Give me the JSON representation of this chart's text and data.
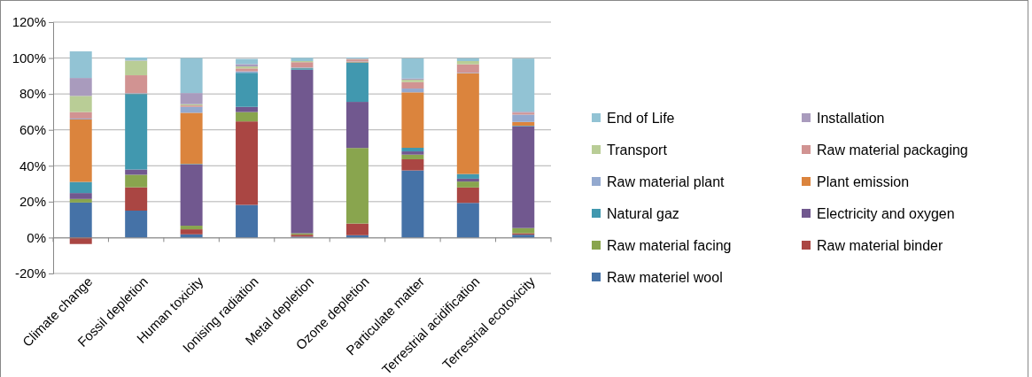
{
  "chart_data": {
    "type": "bar",
    "stacked": true,
    "grid": "y",
    "legend": "right",
    "categories": [
      "Climate change",
      "Fossil depletion",
      "Human toxicity",
      "Ionising radiation",
      "Metal depletion",
      "Ozone depletion",
      "Particulate matter",
      "Terrestrial acidification",
      "Terrestrial ecotoxicity"
    ],
    "ylim": [
      -20,
      120
    ],
    "yticks": [
      {
        "value": -20,
        "label": "-20%"
      },
      {
        "value": 0,
        "label": "0%"
      },
      {
        "value": 20,
        "label": "20%"
      },
      {
        "value": 40,
        "label": "40%"
      },
      {
        "value": 60,
        "label": "60%"
      },
      {
        "value": 80,
        "label": "80%"
      },
      {
        "value": 100,
        "label": "100%"
      },
      {
        "value": 120,
        "label": "120%"
      }
    ],
    "series": [
      {
        "name": "Raw materiel wool",
        "color": "#4572a7",
        "values": [
          19.5,
          15,
          1.8,
          18.2,
          0.5,
          1.3,
          37.4,
          19.3,
          1.6
        ]
      },
      {
        "name": "Raw material binder",
        "color": "#aa4643",
        "values": [
          -3.6,
          13,
          2.8,
          46.5,
          1.1,
          6.5,
          6.2,
          8.6,
          0.8
        ]
      },
      {
        "name": "Raw material facing",
        "color": "#89a54e",
        "values": [
          2,
          7,
          2,
          5.2,
          0.8,
          42.1,
          2.6,
          3.3,
          2.9
        ]
      },
      {
        "name": "Electricity and oxygen",
        "color": "#71588f",
        "values": [
          3.3,
          2.9,
          34.1,
          2.9,
          91.1,
          25.7,
          1.8,
          1.6,
          56.7
        ]
      },
      {
        "name": "Natural gaz",
        "color": "#4198af",
        "values": [
          6.2,
          42.1,
          0.3,
          19,
          0.8,
          22,
          2,
          2.6,
          0.3
        ]
      },
      {
        "name": "Plant emission",
        "color": "#db843d",
        "values": [
          34.8,
          0.2,
          28.5,
          null,
          0.2,
          0.3,
          30.9,
          56.1,
          2.1
        ]
      },
      {
        "name": "Raw material plant",
        "color": "#93a9cf",
        "values": [
          0.5,
          0.3,
          3.3,
          0.8,
          0.3,
          0.2,
          2.1,
          0.3,
          4.1
        ]
      },
      {
        "name": "Raw material packaging",
        "color": "#d19392",
        "values": [
          3.6,
          9.9,
          0.8,
          1.6,
          2.9,
          1.1,
          3.6,
          4.7,
          1.1
        ]
      },
      {
        "name": "Transport",
        "color": "#b9cd96",
        "values": [
          9,
          8.1,
          0.7,
          1.1,
          0.6,
          0.3,
          1.3,
          1.8,
          null
        ]
      },
      {
        "name": "Installation",
        "color": "#a99bbd",
        "values": [
          10,
          0.2,
          6.2,
          1.3,
          null,
          0.3,
          0.7,
          null,
          0.5
        ]
      },
      {
        "name": "End of Life",
        "color": "#92c3d4",
        "values": [
          14.8,
          1.6,
          19.5,
          2.9,
          1.8,
          0.5,
          11.2,
          1.6,
          29.6
        ]
      }
    ]
  }
}
